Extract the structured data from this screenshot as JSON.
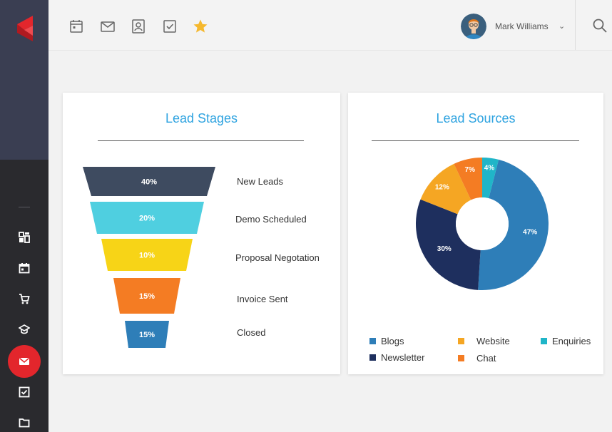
{
  "header": {
    "user_name": "Mark Williams",
    "caret": "⌄",
    "icons": [
      "calendar-icon",
      "mail-icon",
      "contacts-icon",
      "checkbox-icon",
      "star-icon"
    ]
  },
  "sidebar": {
    "icons": [
      "dashboard-icon",
      "calendar-icon",
      "cart-icon",
      "graduation-cap-icon",
      "mail-icon",
      "checkbox-icon",
      "folder-icon"
    ],
    "active": "mail-icon"
  },
  "colors": {
    "accent_red": "#e3262c",
    "title_blue": "#2ea3e0",
    "star_yellow": "#f5b82e"
  },
  "lead_stages": {
    "title": "Lead Stages",
    "stages": [
      {
        "label": "New Leads",
        "value": "40%",
        "color": "#3e4b60"
      },
      {
        "label": "Demo Scheduled",
        "value": "20%",
        "color": "#4fcfe0"
      },
      {
        "label": "Proposal Negotation",
        "value": "10%",
        "color": "#f7d417"
      },
      {
        "label": "Invoice Sent",
        "value": "15%",
        "color": "#f47c23"
      },
      {
        "label": "Closed",
        "value": "15%",
        "color": "#2e7eb8"
      }
    ]
  },
  "lead_sources": {
    "title": "Lead Sources",
    "legend": [
      {
        "label": "Blogs",
        "color": "#2e7eb8"
      },
      {
        "label": "Website",
        "color": "#f5a623"
      },
      {
        "label": "Enquiries",
        "color": "#20b5c8"
      },
      {
        "label": "Newsletter",
        "color": "#1e2f5e"
      },
      {
        "label": "Chat",
        "color": "#f47c23"
      }
    ]
  },
  "chart_data": {
    "type": "pie",
    "title": "Lead Sources",
    "donut": true,
    "slices": [
      {
        "label": "Enquiries",
        "value": 4,
        "display": "4%",
        "color": "#20b5c8"
      },
      {
        "label": "Blogs",
        "value": 47,
        "display": "47%",
        "color": "#2e7eb8"
      },
      {
        "label": "Newsletter",
        "value": 30,
        "display": "30%",
        "color": "#1e2f5e"
      },
      {
        "label": "Website",
        "value": 12,
        "display": "12%",
        "color": "#f5a623"
      },
      {
        "label": "Chat",
        "value": 7,
        "display": "7%",
        "color": "#f47c23"
      }
    ]
  }
}
